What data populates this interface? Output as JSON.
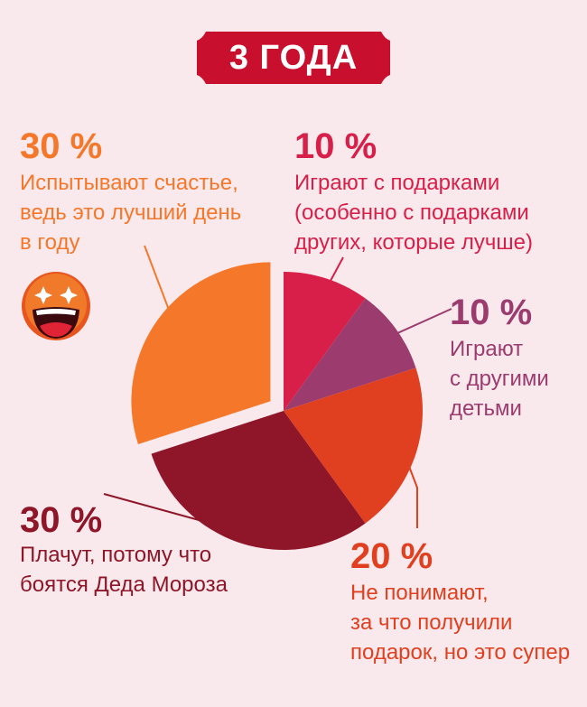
{
  "title": "3 ГОДА",
  "colors": {
    "background": "#f9e9ec",
    "title_badge": "#c8102e"
  },
  "chart_data": {
    "type": "pie",
    "title": "3 ГОДА",
    "slices": [
      {
        "value": 10,
        "pct_label": "10 %",
        "lines": [
          "Играют с подарками",
          "(особенно с подарками",
          "других, которые лучше)"
        ],
        "color": "#d81f49",
        "exploded": false
      },
      {
        "value": 10,
        "pct_label": "10 %",
        "lines": [
          "Играют",
          "с другими",
          "детьми"
        ],
        "color": "#9c3b6e",
        "exploded": false
      },
      {
        "value": 20,
        "pct_label": "20 %",
        "lines": [
          "Не понимают,",
          "за что получили",
          "подарок, но это супер"
        ],
        "color": "#e0401f",
        "exploded": false
      },
      {
        "value": 30,
        "pct_label": "30 %",
        "lines": [
          "Плачут, потому что",
          "боятся Деда Мороза"
        ],
        "color": "#8f1528",
        "exploded": false
      },
      {
        "value": 30,
        "pct_label": "30 %",
        "lines": [
          "Испытывают счастье,",
          "ведь это лучший день",
          "в году"
        ],
        "color": "#f5772a",
        "exploded": true
      }
    ]
  },
  "icons": {
    "smiley": "happy-face-icon"
  }
}
